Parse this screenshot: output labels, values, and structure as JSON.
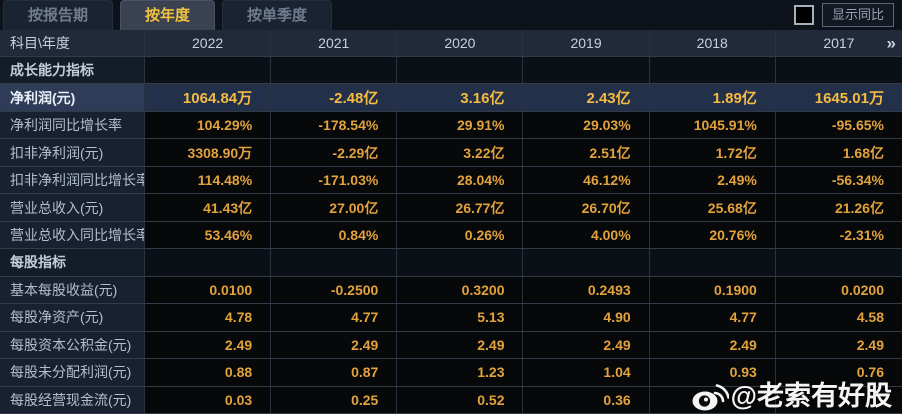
{
  "tabs": [
    {
      "label": "按报告期",
      "active": false
    },
    {
      "label": "按年度",
      "active": true
    },
    {
      "label": "按单季度",
      "active": false
    }
  ],
  "controls": {
    "show_yoy_label": "显示同比",
    "show_yoy_checked": false
  },
  "table": {
    "corner_label": "科目\\年度",
    "years": [
      "2022",
      "2021",
      "2020",
      "2019",
      "2018",
      "2017"
    ],
    "more_icon": "»",
    "sections": [
      {
        "title": "成长能力指标",
        "rows": [
          {
            "label": "净利润(元)",
            "highlight": true,
            "values": [
              "1064.84万",
              "-2.48亿",
              "3.16亿",
              "2.43亿",
              "1.89亿",
              "1645.01万"
            ]
          },
          {
            "label": "净利润同比增长率",
            "values": [
              "104.29%",
              "-178.54%",
              "29.91%",
              "29.03%",
              "1045.91%",
              "-95.65%"
            ]
          },
          {
            "label": "扣非净利润(元)",
            "values": [
              "3308.90万",
              "-2.29亿",
              "3.22亿",
              "2.51亿",
              "1.72亿",
              "1.68亿"
            ]
          },
          {
            "label": "扣非净利润同比增长率",
            "values": [
              "114.48%",
              "-171.03%",
              "28.04%",
              "46.12%",
              "2.49%",
              "-56.34%"
            ]
          },
          {
            "label": "营业总收入(元)",
            "values": [
              "41.43亿",
              "27.00亿",
              "26.77亿",
              "26.70亿",
              "25.68亿",
              "21.26亿"
            ]
          },
          {
            "label": "营业总收入同比增长率",
            "values": [
              "53.46%",
              "0.84%",
              "0.26%",
              "4.00%",
              "20.76%",
              "-2.31%"
            ]
          }
        ]
      },
      {
        "title": "每股指标",
        "rows": [
          {
            "label": "基本每股收益(元)",
            "values": [
              "0.0100",
              "-0.2500",
              "0.3200",
              "0.2493",
              "0.1900",
              "0.0200"
            ]
          },
          {
            "label": "每股净资产(元)",
            "values": [
              "4.78",
              "4.77",
              "5.13",
              "4.90",
              "4.77",
              "4.58"
            ]
          },
          {
            "label": "每股资本公积金(元)",
            "values": [
              "2.49",
              "2.49",
              "2.49",
              "2.49",
              "2.49",
              "2.49"
            ]
          },
          {
            "label": "每股未分配利润(元)",
            "values": [
              "0.88",
              "0.87",
              "1.23",
              "1.04",
              "0.93",
              "0.76"
            ]
          },
          {
            "label": "每股经营现金流(元)",
            "values": [
              "0.03",
              "0.25",
              "0.52",
              "0.36",
              "",
              ""
            ]
          }
        ]
      }
    ]
  },
  "watermark": {
    "text": "@老索有好股"
  },
  "colors": {
    "value_amber": "#e2a23c",
    "highlight_value_gold": "#f5bb44",
    "highlight_row_bg": "#233049",
    "active_tab_text": "#f0c23f",
    "header_bg": "#202a3a"
  }
}
